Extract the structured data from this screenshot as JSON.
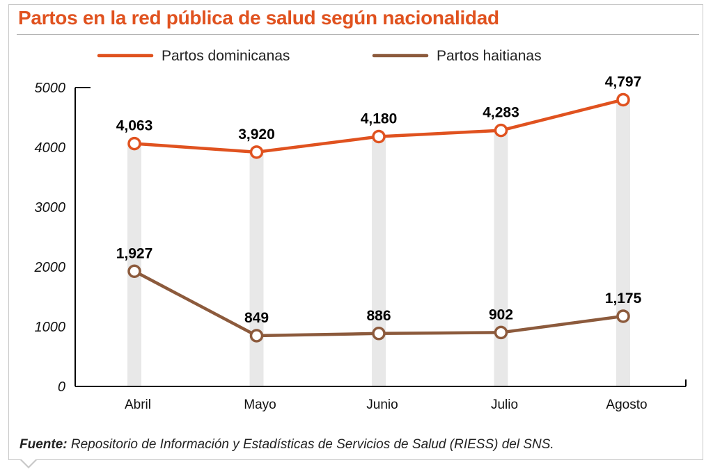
{
  "title": "Partos en la red pública de salud según nacionalidad",
  "source_label": "Fuente:",
  "source_text": "Repositorio de Información y Estadísticas de Servicios de Salud (RIESS) del SNS.",
  "colors": {
    "dominicanas": "#e0521f",
    "haitianas": "#8c5a3c",
    "bar": "#e8e8e8",
    "axis": "#000000"
  },
  "chart_data": {
    "type": "line",
    "title": "Partos en la red pública de salud según nacionalidad",
    "categories": [
      "Abril",
      "Mayo",
      "Junio",
      "Julio",
      "Agosto"
    ],
    "series": [
      {
        "name": "Partos dominicanas",
        "values": [
          4063,
          3920,
          4180,
          4283,
          4797
        ],
        "labels": [
          "4,063",
          "3,920",
          "4,180",
          "4,283",
          "4,797"
        ]
      },
      {
        "name": "Partos haitianas",
        "values": [
          1927,
          849,
          886,
          902,
          1175
        ],
        "labels": [
          "1,927",
          "849",
          "886",
          "902",
          "1,175"
        ]
      }
    ],
    "yticks": [
      "0",
      "1000",
      "2000",
      "3000",
      "4000",
      "5000"
    ],
    "ylim": [
      0,
      5000
    ],
    "xlabel": "",
    "ylabel": "",
    "legend": "top"
  }
}
